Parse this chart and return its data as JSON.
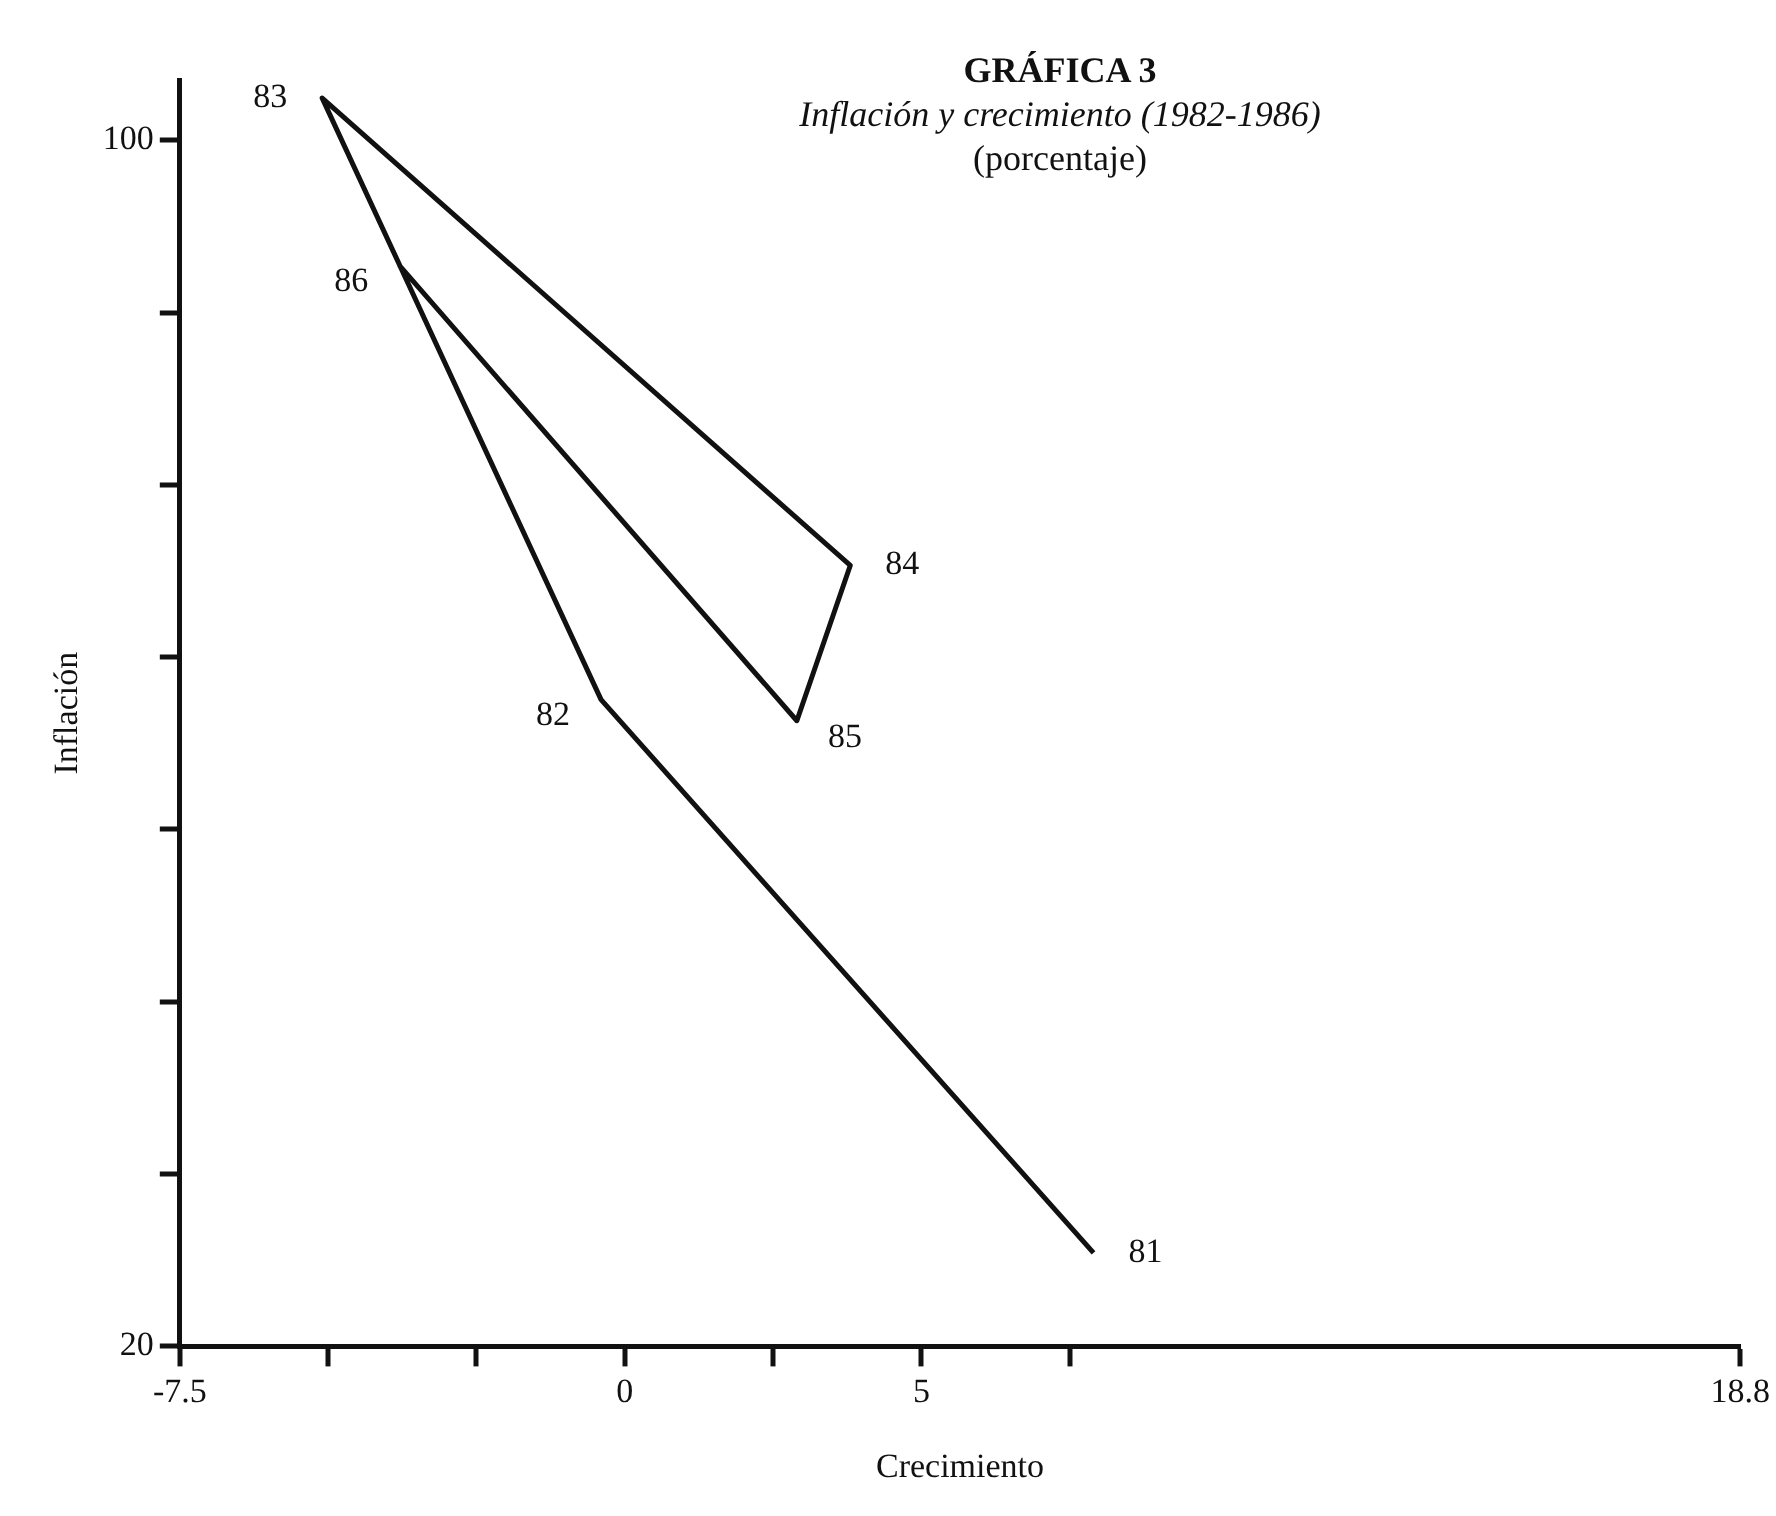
{
  "chart_data": {
    "type": "line",
    "title": "GRÁFICA 3",
    "subtitle": "Inflación y crecimiento (1982-1986)",
    "annotations": [
      "(porcentaje)",
      {
        "text": "81",
        "x": 7.9,
        "y": 26.2
      },
      {
        "text": "82",
        "x": -0.4,
        "y": 62.9
      },
      {
        "text": "83",
        "x": -5.1,
        "y": 102.8
      },
      {
        "text": "84",
        "x": 3.8,
        "y": 71.8
      },
      {
        "text": "85",
        "x": 2.9,
        "y": 61.5
      },
      {
        "text": "86",
        "x": -3.8,
        "y": 91.7
      }
    ],
    "xlabel": "Crecimiento",
    "ylabel": "Inflación",
    "series": [
      {
        "color": "#111111",
        "x": [
          7.9,
          -0.4,
          -5.1,
          3.8,
          2.9,
          -3.8
        ],
        "values": [
          26.2,
          62.9,
          102.8,
          71.8,
          61.5,
          91.7
        ]
      }
    ],
    "xlim": [
      -7.5,
      18.8
    ],
    "xticks": [
      -7.5,
      {
        "value": -5,
        "label": null
      },
      {
        "value": -2.5,
        "label": null
      },
      0,
      {
        "value": 2.5,
        "label": null
      },
      5,
      {
        "value": 7.5,
        "label": null
      },
      18.8
    ],
    "ylim": [
      20,
      104
    ],
    "yticks": [
      20,
      {
        "value": 31.43,
        "label": null
      },
      {
        "value": 42.86,
        "label": null
      },
      {
        "value": 54.29,
        "label": null
      },
      {
        "value": 65.71,
        "label": null
      },
      {
        "value": 77.14,
        "label": null
      },
      {
        "value": 88.57,
        "label": null
      },
      100
    ],
    "grid": false,
    "legend": false,
    "marker": "none",
    "line_style": "solid"
  }
}
